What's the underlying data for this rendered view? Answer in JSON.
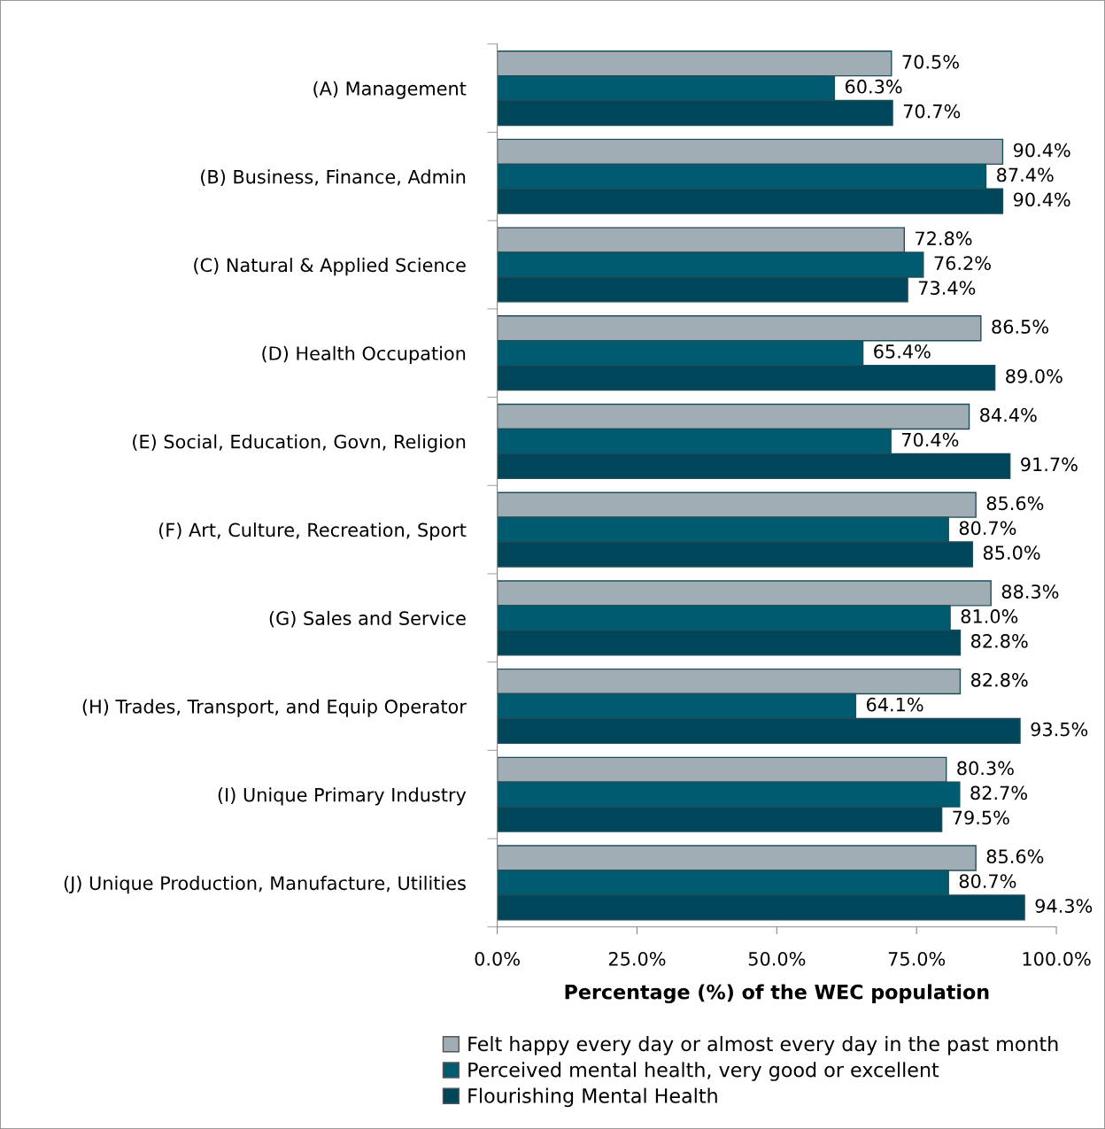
{
  "chart_data": {
    "type": "bar",
    "orientation": "horizontal",
    "xlabel": "Percentage (%) of the WEC population",
    "categories": [
      "(A) Management",
      "(B) Business, Finance, Admin",
      "(C) Natural & Applied Science",
      "(D) Health Occupation",
      "(E) Social, Education, Govn, Religion",
      "(F) Art, Culture, Recreation, Sport",
      "(G) Sales and Service",
      "(H) Trades, Transport, and Equip Operator",
      "(I) Unique Primary Industry",
      "(J) Unique Production, Manufacture, Utilities"
    ],
    "series": [
      {
        "name": "Felt happy every day or almost every day in the past month",
        "color": "#a0adb4",
        "values": [
          70.5,
          90.4,
          72.8,
          86.5,
          84.4,
          85.6,
          88.3,
          82.8,
          80.3,
          85.6
        ],
        "value_labels": [
          "70.5%",
          "90.4%",
          "72.8%",
          "86.5%",
          "84.4%",
          "85.6%",
          "88.3%",
          "82.8%",
          "80.3%",
          "85.6%"
        ]
      },
      {
        "name": "Perceived mental health, very good or excellent",
        "color": "#005a70",
        "values": [
          60.3,
          87.4,
          76.2,
          65.4,
          70.4,
          80.7,
          81.0,
          64.1,
          82.7,
          80.7
        ],
        "value_labels": [
          "60.3%",
          "87.4%",
          "76.2%",
          "65.4%",
          "70.4%",
          "80.7%",
          "81.0%",
          "64.1%",
          "82.7%",
          "80.7%"
        ]
      },
      {
        "name": "Flourishing Mental Health",
        "color": "#00465a",
        "values": [
          70.7,
          90.4,
          73.4,
          89.0,
          91.7,
          85.0,
          82.8,
          93.5,
          79.5,
          94.3
        ],
        "value_labels": [
          "70.7%",
          "90.4%",
          "73.4%",
          "89.0%",
          "91.7%",
          "85.0%",
          "82.8%",
          "93.5%",
          "79.5%",
          "94.3%"
        ]
      }
    ],
    "xlim": [
      0,
      100
    ],
    "xticks": [
      {
        "value": 0,
        "label": "0.0%"
      },
      {
        "value": 25,
        "label": "25.0%"
      },
      {
        "value": 50,
        "label": "50.0%"
      },
      {
        "value": 75,
        "label": "75.0%"
      },
      {
        "value": 100,
        "label": "100.0%"
      }
    ],
    "grid": false,
    "legend": "bottom"
  }
}
